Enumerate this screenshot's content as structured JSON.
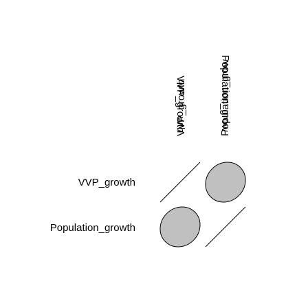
{
  "chart_data": {
    "type": "heatmap",
    "subtype": "correlation-matrix-ellipse",
    "variables": [
      "VVP_growth",
      "Population_growth"
    ],
    "row_labels": [
      "VVP_growth",
      "Population_growth"
    ],
    "column_labels": [
      "VVP_growth",
      "Population_grow"
    ],
    "matrix": [
      [
        1.0,
        0.1
      ],
      [
        0.1,
        1.0
      ]
    ],
    "ellipse_fill": "#c0c0c0",
    "line_color": "#000000",
    "diagonal_style": "line",
    "legend": false,
    "grid": false
  }
}
